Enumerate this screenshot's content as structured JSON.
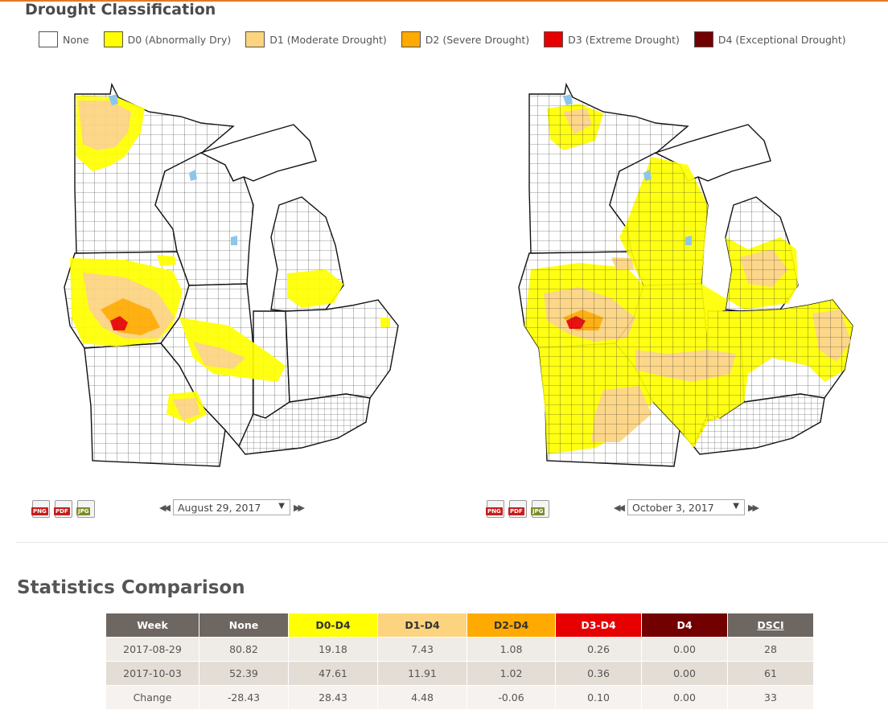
{
  "header": {
    "title": "Drought Classification"
  },
  "legend": [
    {
      "label": "None",
      "color": "#ffffff"
    },
    {
      "label": "D0 (Abnormally Dry)",
      "color": "#ffff00"
    },
    {
      "label": "D1 (Moderate Drought)",
      "color": "#fcd37f"
    },
    {
      "label": "D2 (Severe Drought)",
      "color": "#ffaa00"
    },
    {
      "label": "D3 (Extreme Drought)",
      "color": "#e60000"
    },
    {
      "label": "D4 (Exceptional Drought)",
      "color": "#730000"
    }
  ],
  "maps": {
    "left": {
      "date": "August 29, 2017"
    },
    "right": {
      "date": "October 3, 2017"
    }
  },
  "downloads": {
    "png": "PNG",
    "pdf": "PDF",
    "jpg": "JPG"
  },
  "stats": {
    "title": "Statistics Comparison",
    "columns": [
      {
        "label": "Week",
        "bg": "#6e6661",
        "fg": "#ffffff"
      },
      {
        "label": "None",
        "bg": "#6e6661",
        "fg": "#ffffff"
      },
      {
        "label": "D0-D4",
        "bg": "#ffff00",
        "fg": "#333333"
      },
      {
        "label": "D1-D4",
        "bg": "#fcd37f",
        "fg": "#333333"
      },
      {
        "label": "D2-D4",
        "bg": "#ffaa00",
        "fg": "#333333"
      },
      {
        "label": "D3-D4",
        "bg": "#e60000",
        "fg": "#ffffff"
      },
      {
        "label": "D4",
        "bg": "#730000",
        "fg": "#ffffff"
      },
      {
        "label": "DSCI",
        "bg": "#6e6661",
        "fg": "#ffffff"
      }
    ],
    "rows": [
      [
        "2017-08-29",
        "80.82",
        "19.18",
        "7.43",
        "1.08",
        "0.26",
        "0.00",
        "28"
      ],
      [
        "2017-10-03",
        "52.39",
        "47.61",
        "11.91",
        "1.02",
        "0.36",
        "0.00",
        "61"
      ],
      [
        "Change",
        "-28.43",
        "28.43",
        "4.48",
        "-0.06",
        "0.10",
        "0.00",
        "33"
      ]
    ]
  }
}
